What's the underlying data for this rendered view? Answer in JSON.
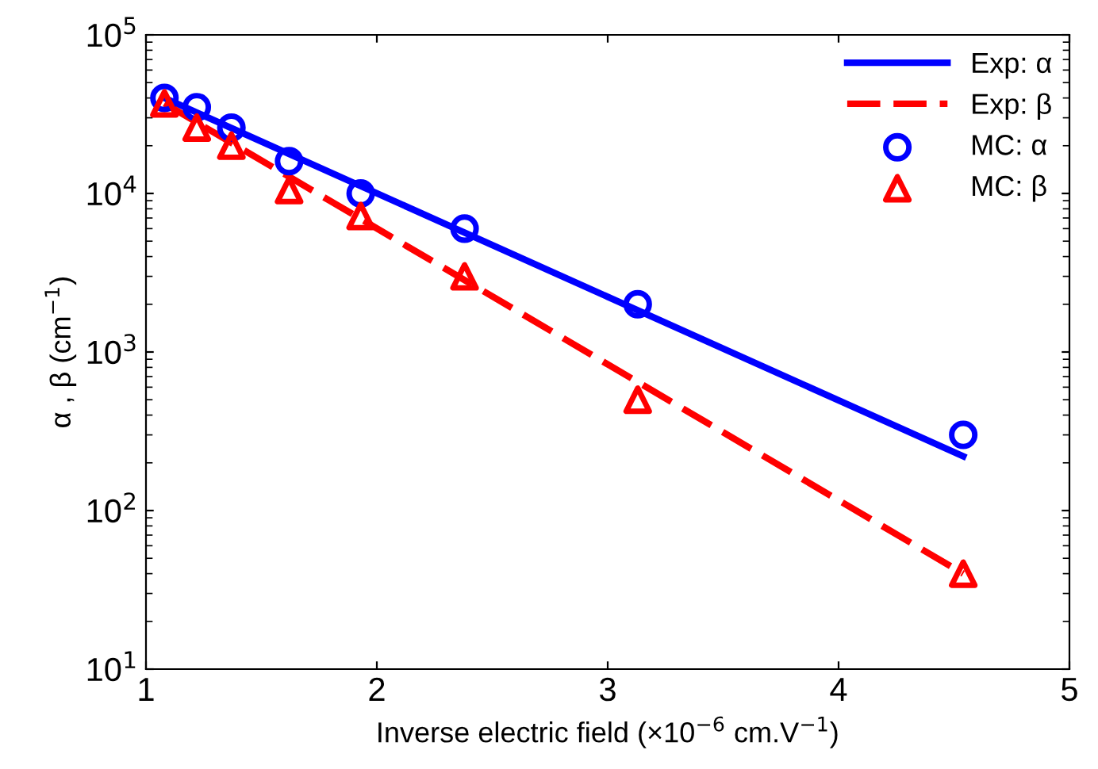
{
  "chart_data": {
    "type": "line",
    "xlabel": "Inverse electric field (×10$^{−6}$ cm.V$^{−1}$)",
    "ylabel": "α , β (cm$^{−1}$)",
    "log": "y",
    "xlim": [
      1,
      5
    ],
    "xticks": [
      1,
      2,
      3,
      4,
      5
    ],
    "ylim": [
      10,
      100000
    ],
    "yticks": [
      {
        "value": 10,
        "label": "10$^{1}$"
      },
      {
        "value": 100,
        "label": "10$^{2}$"
      },
      {
        "value": 1000,
        "label": "10$^{3}$"
      },
      {
        "value": 10000,
        "label": "10$^{4}$"
      },
      {
        "value": 100000,
        "label": "10$^{5}$"
      }
    ],
    "grid": false,
    "legend": "top right",
    "series": [
      {
        "name": "Exp: α",
        "color": "#0000ff",
        "line_style": "solid",
        "marker": "none",
        "x": [
          1.08,
          4.54
        ],
        "values": [
          40000,
          220
        ]
      },
      {
        "name": "Exp: β",
        "color": "#ff0000",
        "line_style": "dashed",
        "marker": "none",
        "x": [
          1.08,
          4.54
        ],
        "values": [
          37000,
          40
        ]
      },
      {
        "name": "MC: α",
        "type": "scatter",
        "color": "#0000ff",
        "marker": "circle",
        "x": [
          1.08,
          1.22,
          1.37,
          1.62,
          1.93,
          2.38,
          3.13,
          4.54
        ],
        "values": [
          40000,
          35000,
          26000,
          16000,
          10000,
          6000,
          2000,
          300
        ]
      },
      {
        "name": "MC: β",
        "type": "scatter",
        "color": "#ff0000",
        "marker": "triangle",
        "x": [
          1.08,
          1.22,
          1.37,
          1.62,
          1.93,
          2.38,
          3.13,
          4.54
        ],
        "values": [
          37000,
          26000,
          20000,
          10500,
          7200,
          3000,
          500,
          40
        ]
      }
    ]
  }
}
